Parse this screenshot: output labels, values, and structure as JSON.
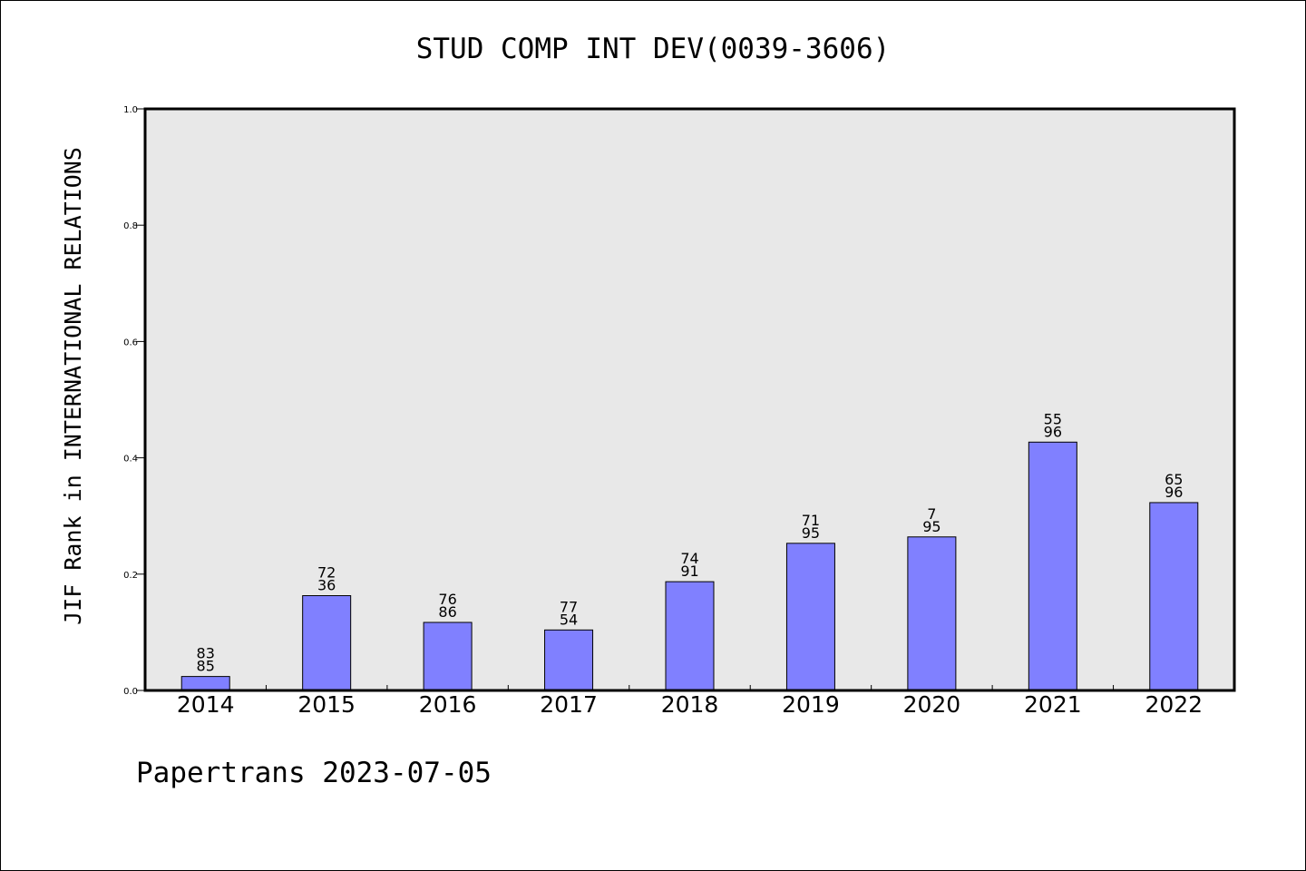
{
  "title": "STUD COMP INT DEV(0039-3606)",
  "footer": "Papertrans 2023-07-05",
  "chart_data": {
    "type": "bar",
    "title": "STUD COMP INT DEV(0039-3606)",
    "xlabel": "",
    "ylabel": "JIF Rank in INTERNATIONAL RELATIONS",
    "ylim": [
      0,
      1.0
    ],
    "yticks": [
      "0.0",
      "0.2",
      "0.4",
      "0.6",
      "0.8",
      "1.0"
    ],
    "categories": [
      "2014",
      "2015",
      "2016",
      "2017",
      "2018",
      "2019",
      "2020",
      "2021",
      "2022"
    ],
    "values": [
      0.024,
      0.163,
      0.117,
      0.104,
      0.187,
      0.253,
      0.264,
      0.427,
      0.323
    ],
    "bar_labels": [
      [
        "83",
        "85"
      ],
      [
        "72",
        "36"
      ],
      [
        "76",
        "86"
      ],
      [
        "77",
        "54"
      ],
      [
        "74",
        "91"
      ],
      [
        "71",
        "95"
      ],
      [
        "7",
        "95"
      ],
      [
        "55",
        "96"
      ],
      [
        "65",
        "96"
      ]
    ],
    "grid": false,
    "colors": {
      "bar": "#8080ff",
      "plot_bg": "#e8e8e8",
      "axis": "#000000"
    }
  }
}
